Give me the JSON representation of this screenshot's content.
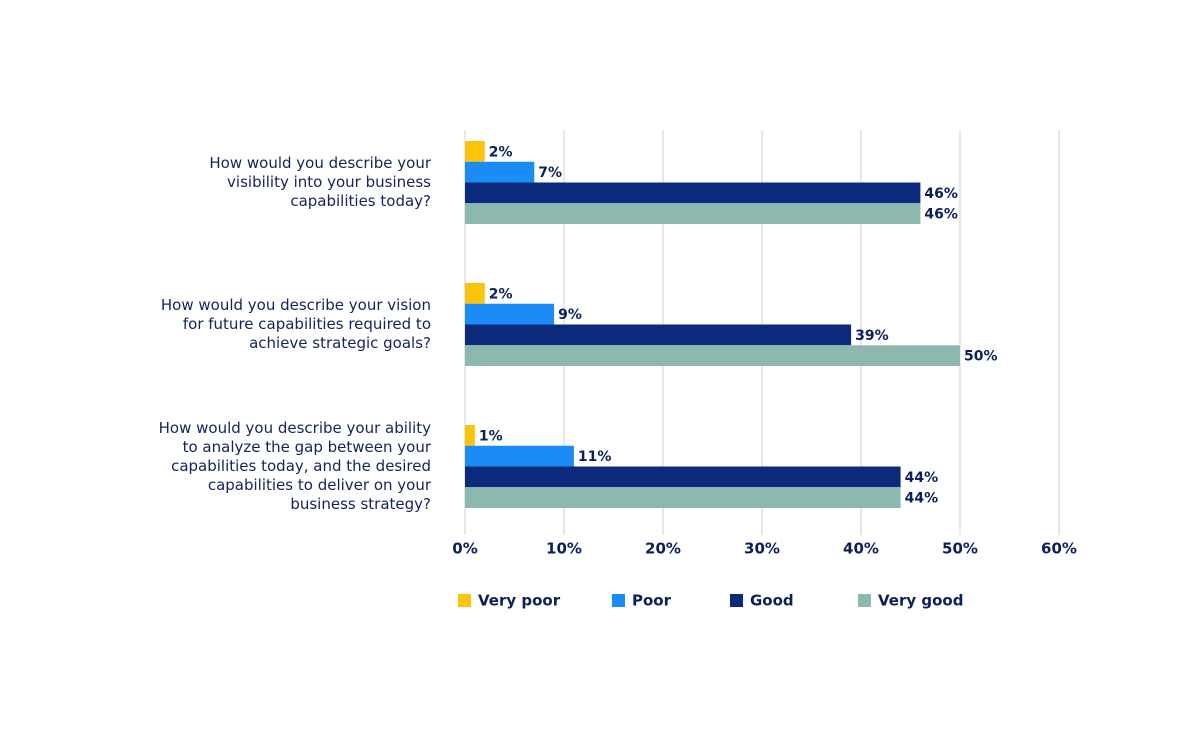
{
  "chart_data": {
    "type": "hbar",
    "categories": [
      [
        "How would you describe your",
        "visibility into your business",
        "capabilities today?"
      ],
      [
        "How would you describe your vision",
        "for future capabilities required to",
        "achieve strategic goals?"
      ],
      [
        "How would you describe your ability",
        "to analyze the gap between your",
        "capabilities today, and the desired",
        "capabilities to deliver on your",
        "business strategy?"
      ]
    ],
    "series": [
      {
        "name": "Very poor",
        "color": "#fcc30b",
        "values": [
          2,
          2,
          1
        ],
        "value_labels": [
          "2%",
          "2%",
          "1%"
        ]
      },
      {
        "name": "Poor",
        "color": "#1b8cf5",
        "values": [
          7,
          9,
          11
        ],
        "value_labels": [
          "7%",
          "9%",
          "11%"
        ]
      },
      {
        "name": "Good",
        "color": "#0b2a7c",
        "values": [
          46,
          39,
          44
        ],
        "value_labels": [
          "46%",
          "39%",
          "44%"
        ]
      },
      {
        "name": "Very good",
        "color": "#8db8b0",
        "values": [
          46,
          50,
          44
        ],
        "value_labels": [
          "46%",
          "50%",
          "44%"
        ]
      }
    ],
    "xlim": [
      0,
      60
    ],
    "xticks": [
      {
        "value": 0,
        "label": "0%"
      },
      {
        "value": 10,
        "label": "10%"
      },
      {
        "value": 20,
        "label": "20%"
      },
      {
        "value": 30,
        "label": "30%"
      },
      {
        "value": 40,
        "label": "40%"
      },
      {
        "value": 50,
        "label": "50%"
      },
      {
        "value": 60,
        "label": "60%"
      }
    ],
    "grid": true
  }
}
